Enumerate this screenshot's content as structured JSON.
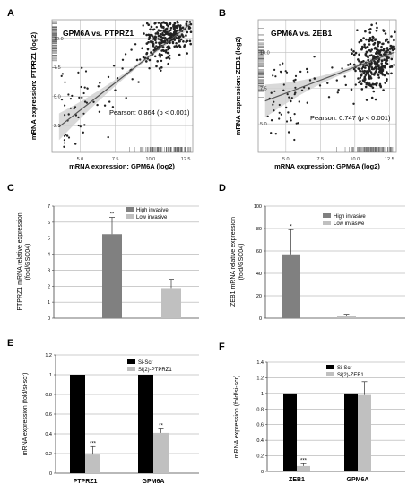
{
  "colors": {
    "dark_bar": "#000000",
    "mid_bar": "#808080",
    "light_bar": "#c0c0c0",
    "point": "#222222",
    "grid": "#bfbfbf",
    "frame": "#999999",
    "fit": "#555555",
    "band": "#cfcfcf"
  },
  "chart_data": [
    {
      "panel": "A",
      "type": "scatter",
      "title": "GPM6A vs. PTPRZ1",
      "xlabel": "mRNA expression: GPM6A (log2)",
      "ylabel": "mRNA expression: PTPRZ1 (log2)",
      "xticks": [
        "5.0",
        "7.5",
        "10.0",
        "12.5"
      ],
      "yticks": [
        "2.5",
        "5.0",
        "7.5",
        "10.0"
      ],
      "xlim": [
        3.0,
        13.0
      ],
      "ylim": [
        0.2,
        11.6
      ],
      "grid": true,
      "annotation": "Pearson: 0.864 (p < 0.001)",
      "fit": {
        "x0": 3.5,
        "y0": 2.4,
        "x1": 12.8,
        "y1": 11.2
      },
      "cluster": {
        "x": 11.3,
        "y": 10.2,
        "sx": 0.9,
        "sy": 0.9
      }
    },
    {
      "panel": "B",
      "type": "scatter",
      "title": "GPM6A vs. ZEB1",
      "xlabel": "mRNA expression: GPM6A (log2)",
      "ylabel": "mRNA expression: ZEB1 (log2)",
      "xticks": [
        "5.0",
        "7.5",
        "10.0",
        "12.5"
      ],
      "yticks": [
        "5.0",
        "7.5",
        "10.0"
      ],
      "xlim": [
        3.0,
        13.0
      ],
      "ylim": [
        3.0,
        12.3
      ],
      "grid": true,
      "annotation": "Pearson: 0.747 (p < 0.001)",
      "fit": {
        "x0": 3.5,
        "y0": 6.6,
        "x1": 12.8,
        "y1": 10.0
      },
      "cluster": {
        "x": 11.5,
        "y": 9.4,
        "sx": 0.8,
        "sy": 1.1
      }
    },
    {
      "panel": "C",
      "type": "bar",
      "ylabel": "PTPRZ1 mRNA relative expression (fold/GSC04)",
      "ylim": [
        0,
        7
      ],
      "yticks": [
        "0",
        "1",
        "2",
        "3",
        "4",
        "5",
        "6",
        "7"
      ],
      "categories": [
        "High invasive",
        "Low invasive"
      ],
      "values": [
        5.25,
        1.88
      ],
      "errors": [
        1.05,
        0.55
      ],
      "significance": [
        "**",
        ""
      ],
      "legend": [
        "High invasive",
        "Low invasive"
      ]
    },
    {
      "panel": "D",
      "type": "bar",
      "ylabel": "ZEB1 mRNA relative expression (fold/GSC04)",
      "ylim": [
        0,
        100
      ],
      "yticks": [
        "0",
        "20",
        "40",
        "60",
        "80",
        "100"
      ],
      "categories": [
        "High invasive",
        "Low invasive"
      ],
      "values": [
        57,
        2
      ],
      "errors": [
        22,
        1.5
      ],
      "significance": [
        "*",
        ""
      ],
      "legend": [
        "High invasive",
        "Low invasive"
      ]
    },
    {
      "panel": "E",
      "type": "bar",
      "ylabel": "mRNA expression (fold/si-scr)",
      "ylim": [
        0,
        1.2
      ],
      "yticks": [
        "0",
        "0.2",
        "0.4",
        "0.6",
        "0.8",
        "1",
        "1.2"
      ],
      "categories": [
        "PTPRZ1",
        "GPM6A"
      ],
      "series": [
        {
          "name": "Si-Scr",
          "values": [
            1.0,
            1.0
          ],
          "errors": [
            0,
            0
          ]
        },
        {
          "name": "Si(2)-PTPRZ1",
          "values": [
            0.19,
            0.41
          ],
          "errors": [
            0.08,
            0.04
          ]
        }
      ],
      "significance": [
        "***",
        "**"
      ]
    },
    {
      "panel": "F",
      "type": "bar",
      "ylabel": "mRNA expression (fold/si-scr)",
      "ylim": [
        0,
        1.4
      ],
      "yticks": [
        "0",
        "0.2",
        "0.4",
        "0.6",
        "0.8",
        "1",
        "1.2",
        "1.4"
      ],
      "categories": [
        "ZEB1",
        "GPM6A"
      ],
      "series": [
        {
          "name": "Si-Scr",
          "values": [
            1.0,
            1.0
          ],
          "errors": [
            0,
            0
          ]
        },
        {
          "name": "Si(2)-ZEB1",
          "values": [
            0.07,
            0.98
          ],
          "errors": [
            0.03,
            0.17
          ]
        }
      ],
      "significance": [
        "***",
        ""
      ]
    }
  ]
}
